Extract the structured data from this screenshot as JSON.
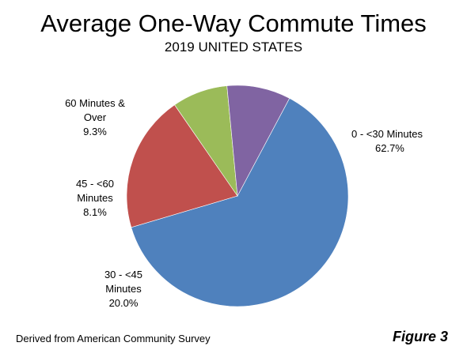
{
  "chart_data": {
    "type": "pie",
    "title": "Average One-Way Commute Times",
    "subtitle": "2019 UNITED STATES",
    "start_angle_deg": -62,
    "slices": [
      {
        "label_lines": [
          "0 - <30 Minutes"
        ],
        "value": 62.7,
        "value_label": "62.7%",
        "color": "#4F81BD",
        "label_align": "start"
      },
      {
        "label_lines": [
          "30 - <45",
          "Minutes"
        ],
        "value": 20.0,
        "value_label": "20.0%",
        "color": "#C0504D",
        "label_align": "middle"
      },
      {
        "label_lines": [
          "45 - <60",
          "Minutes"
        ],
        "value": 8.1,
        "value_label": "8.1%",
        "color": "#9BBB59",
        "label_align": "middle"
      },
      {
        "label_lines": [
          "60 Minutes &",
          "Over"
        ],
        "value": 9.3,
        "value_label": "9.3%",
        "color": "#8064A2",
        "label_align": "middle"
      }
    ],
    "legend": "none"
  },
  "footer": {
    "source": "Derived from American Community Survey",
    "figure": "Figure 3"
  }
}
